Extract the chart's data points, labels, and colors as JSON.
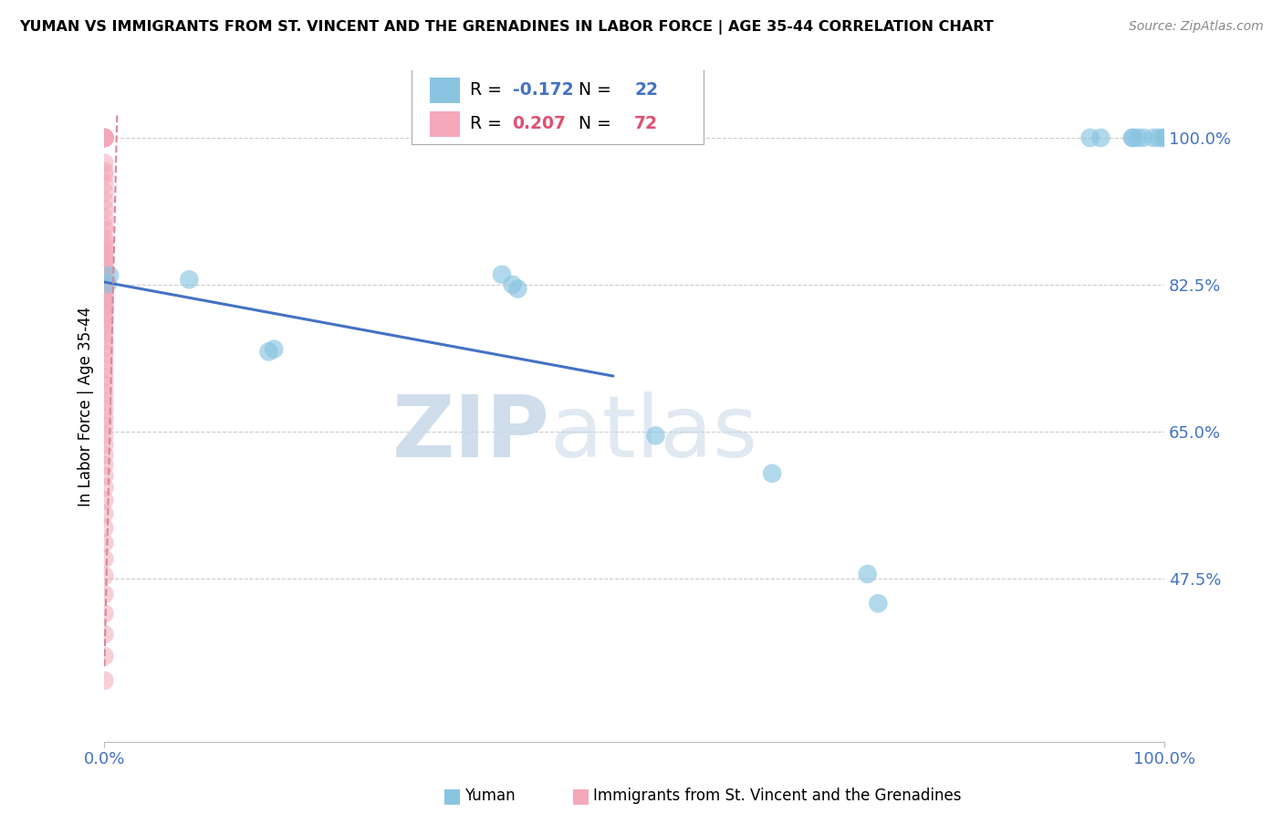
{
  "title": "YUMAN VS IMMIGRANTS FROM ST. VINCENT AND THE GRENADINES IN LABOR FORCE | AGE 35-44 CORRELATION CHART",
  "source_text": "Source: ZipAtlas.com",
  "ylabel": "In Labor Force | Age 35-44",
  "xlim": [
    0.0,
    1.0
  ],
  "ylim": [
    0.28,
    1.08
  ],
  "xtick_positions": [
    0.0,
    1.0
  ],
  "xtick_labels": [
    "0.0%",
    "100.0%"
  ],
  "ytick_vals": [
    0.475,
    0.65,
    0.825,
    1.0
  ],
  "ytick_labels": [
    "47.5%",
    "65.0%",
    "82.5%",
    "100.0%"
  ],
  "background_color": "#ffffff",
  "grid_color": "#cccccc",
  "blue_color": "#89c4e1",
  "pink_color": "#f4a8ba",
  "trendline_blue_color": "#4472c4",
  "trendline_pink_color": "#d4899a",
  "tick_color": "#4472c4",
  "legend_R_blue": "-0.172",
  "legend_N_blue": "22",
  "legend_R_pink": "0.207",
  "legend_N_pink": "72",
  "watermark_zip": "ZIP",
  "watermark_atlas": "atlas",
  "blue_scatter_x": [
    0.003,
    0.005,
    0.08,
    0.155,
    0.16,
    0.375,
    0.385,
    0.39,
    0.52,
    0.63,
    0.72,
    0.73,
    0.93,
    0.94,
    0.97,
    0.97,
    0.975,
    0.98,
    0.99,
    0.995,
    1.0,
    1.0
  ],
  "blue_scatter_y": [
    0.826,
    0.836,
    0.831,
    0.745,
    0.748,
    0.837,
    0.825,
    0.82,
    0.645,
    0.6,
    0.48,
    0.445,
    1.0,
    1.0,
    1.0,
    1.0,
    1.0,
    1.0,
    1.0,
    1.0,
    1.0,
    1.0
  ],
  "pink_scatter_x": [
    0.0,
    0.0,
    0.0,
    0.0,
    0.0,
    0.0,
    0.0,
    0.0,
    0.0,
    0.0,
    0.0,
    0.0,
    0.0,
    0.0,
    0.0,
    0.0,
    0.0,
    0.0,
    0.0,
    0.0,
    0.0,
    0.0,
    0.0,
    0.0,
    0.0,
    0.0,
    0.0,
    0.0,
    0.0,
    0.0,
    0.0,
    0.0,
    0.0,
    0.0,
    0.0,
    0.0,
    0.0,
    0.0,
    0.0,
    0.0,
    0.0,
    0.0,
    0.0,
    0.0,
    0.0,
    0.0,
    0.0,
    0.0,
    0.0,
    0.0,
    0.0,
    0.0,
    0.0,
    0.0,
    0.0,
    0.0,
    0.0,
    0.0,
    0.0,
    0.0,
    0.0,
    0.0,
    0.0,
    0.0,
    0.0,
    0.0,
    0.0,
    0.0,
    0.0,
    0.0,
    0.0,
    0.0
  ],
  "pink_scatter_y": [
    1.0,
    1.0,
    1.0,
    1.0,
    1.0,
    1.0,
    1.0,
    1.0,
    0.97,
    0.96,
    0.955,
    0.945,
    0.935,
    0.925,
    0.915,
    0.905,
    0.895,
    0.89,
    0.88,
    0.875,
    0.87,
    0.865,
    0.86,
    0.855,
    0.85,
    0.845,
    0.84,
    0.836,
    0.832,
    0.828,
    0.824,
    0.82,
    0.816,
    0.812,
    0.808,
    0.804,
    0.8,
    0.796,
    0.79,
    0.784,
    0.778,
    0.772,
    0.766,
    0.758,
    0.75,
    0.742,
    0.733,
    0.724,
    0.715,
    0.706,
    0.696,
    0.686,
    0.676,
    0.666,
    0.656,
    0.645,
    0.634,
    0.622,
    0.61,
    0.597,
    0.583,
    0.568,
    0.552,
    0.535,
    0.517,
    0.498,
    0.478,
    0.456,
    0.433,
    0.408,
    0.382,
    0.353
  ],
  "blue_trend_x": [
    0.0,
    0.48
  ],
  "blue_trend_y": [
    0.828,
    0.716
  ],
  "pink_trend_x": [
    0.0,
    0.012
  ],
  "pink_trend_y": [
    0.37,
    1.03
  ]
}
